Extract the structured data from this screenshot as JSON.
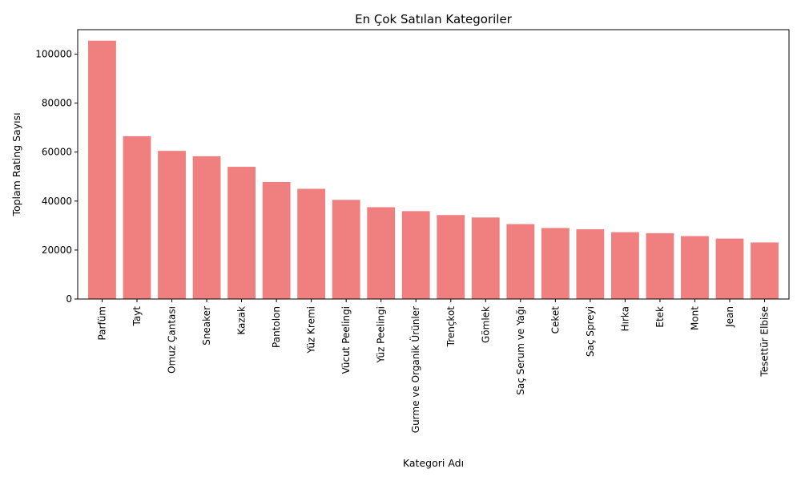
{
  "chart_data": {
    "type": "bar",
    "title": "En Çok Satılan Kategoriler",
    "xlabel": "Kategori Adı",
    "ylabel": "Toplam Rating Sayısı",
    "categories": [
      "Parfüm",
      "Tayt",
      "Omuz Çantası",
      "Sneaker",
      "Kazak",
      "Pantolon",
      "Yüz Kremi",
      "Vücut Peelingi",
      "Yüz Peelingi",
      "Gurme ve Organik Ürünler",
      "Trençkot",
      "Gömlek",
      "Saç Serum ve Yağı",
      "Ceket",
      "Saç Spreyi",
      "Hırka",
      "Etek",
      "Mont",
      "Jean",
      "Tesettür Elbise"
    ],
    "values": [
      105500,
      66500,
      60500,
      58300,
      54000,
      47800,
      45000,
      40500,
      37500,
      35900,
      34300,
      33300,
      30600,
      29000,
      28500,
      27300,
      26900,
      25700,
      24700,
      23100
    ],
    "ylim": [
      0,
      110000
    ],
    "yticks": [
      0,
      20000,
      40000,
      60000,
      80000,
      100000
    ],
    "bar_color": "#f08080",
    "grid": false,
    "legend": "none"
  }
}
